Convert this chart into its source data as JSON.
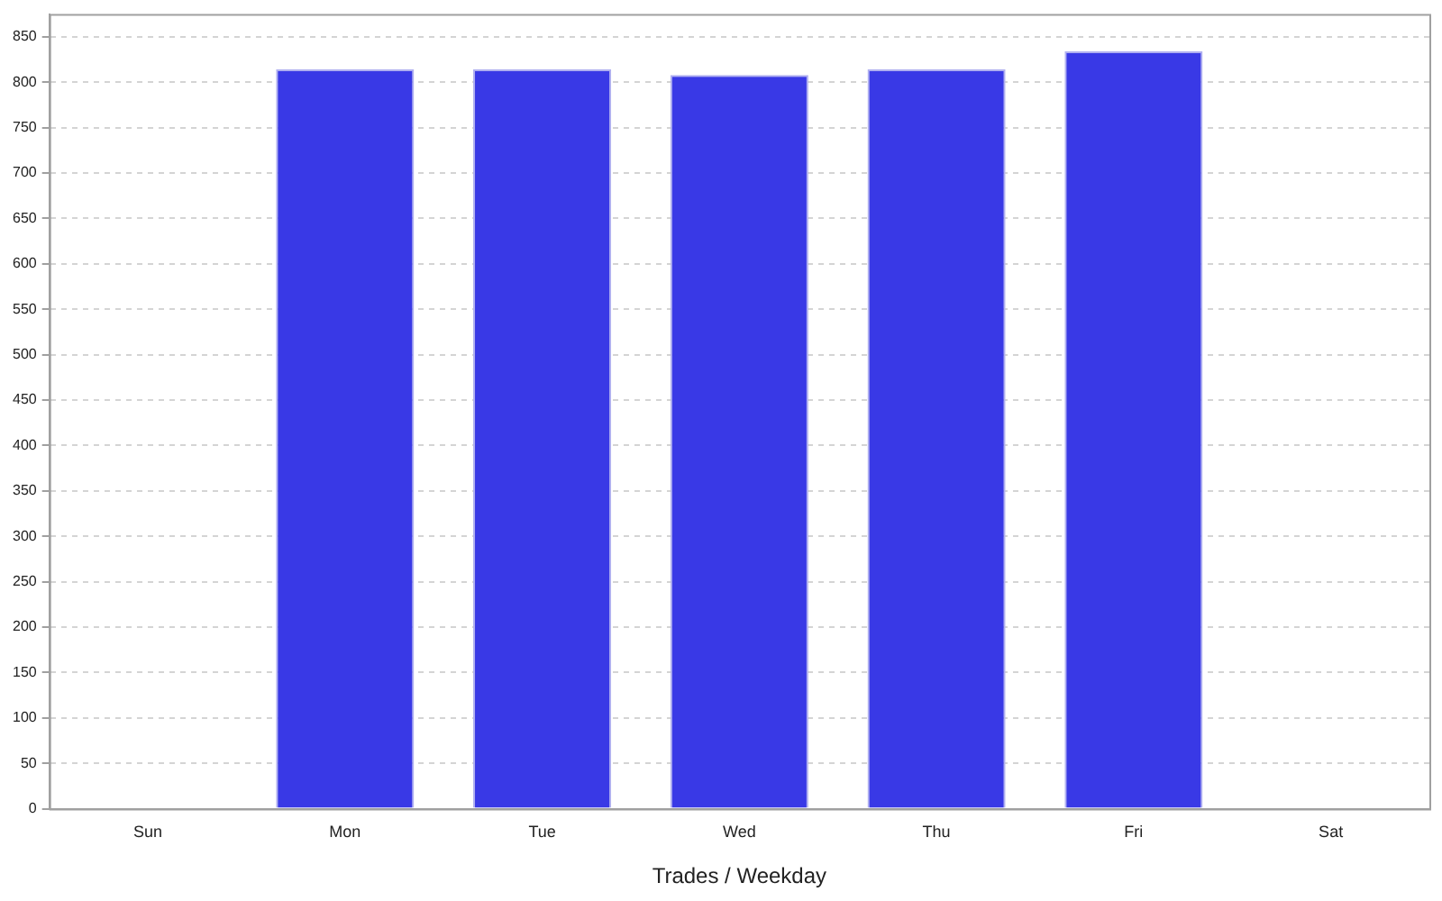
{
  "chart_data": {
    "type": "bar",
    "xlabel": "Trades / Weekday",
    "categories": [
      "Sun",
      "Mon",
      "Tue",
      "Wed",
      "Thu",
      "Fri",
      "Sat"
    ],
    "values": [
      0,
      814,
      814,
      808,
      814,
      834,
      0
    ],
    "color": "#3939e6",
    "ylim": [
      0,
      875
    ],
    "yticks": [
      0,
      50,
      100,
      150,
      200,
      250,
      300,
      350,
      400,
      450,
      500,
      550,
      600,
      650,
      700,
      750,
      800,
      850
    ],
    "grid": "y"
  }
}
